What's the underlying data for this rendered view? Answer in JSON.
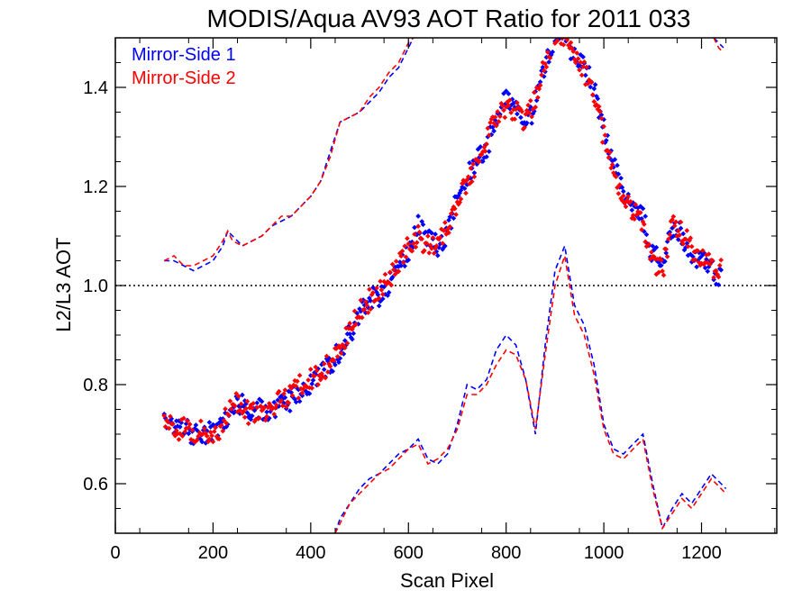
{
  "chart_data": {
    "type": "scatter",
    "title": "MODIS/Aqua AV93 AOT Ratio for 2011 033",
    "xlabel": "Scan Pixel",
    "ylabel": "L2/L3 AOT",
    "xlim": [
      0,
      1354
    ],
    "ylim": [
      0.5,
      1.5
    ],
    "x_ticks": [
      0,
      200,
      400,
      600,
      800,
      1000,
      1200
    ],
    "x_tick_labels": [
      "0",
      "200",
      "400",
      "600",
      "800",
      "1000",
      "1200"
    ],
    "y_ticks": [
      0.6,
      0.8,
      1.0,
      1.2,
      1.4
    ],
    "y_tick_labels": [
      "0.6",
      "0.8",
      "1.0",
      "1.2",
      "1.4"
    ],
    "reference_line": 1.0,
    "legend_position": "top-left",
    "series": [
      {
        "name": "Mirror-Side 1",
        "color": "#0000ff",
        "mean": {
          "x": [
            100,
            120,
            140,
            160,
            180,
            200,
            220,
            240,
            260,
            280,
            300,
            320,
            340,
            360,
            380,
            400,
            420,
            440,
            460,
            480,
            500,
            520,
            540,
            560,
            580,
            600,
            620,
            640,
            660,
            680,
            700,
            720,
            740,
            760,
            780,
            800,
            820,
            840,
            860,
            880,
            900,
            920,
            940,
            960,
            980,
            1000,
            1020,
            1040,
            1060,
            1080,
            1100,
            1120,
            1140,
            1160,
            1180,
            1200,
            1220,
            1240
          ],
          "y": [
            0.73,
            0.72,
            0.71,
            0.7,
            0.7,
            0.71,
            0.71,
            0.76,
            0.76,
            0.75,
            0.75,
            0.74,
            0.76,
            0.77,
            0.79,
            0.8,
            0.82,
            0.84,
            0.87,
            0.9,
            0.94,
            0.97,
            0.98,
            1.0,
            1.03,
            1.07,
            1.12,
            1.09,
            1.08,
            1.1,
            1.18,
            1.22,
            1.25,
            1.28,
            1.33,
            1.38,
            1.36,
            1.31,
            1.37,
            1.44,
            1.5,
            1.51,
            1.46,
            1.44,
            1.4,
            1.32,
            1.24,
            1.19,
            1.16,
            1.14,
            1.06,
            1.05,
            1.12,
            1.1,
            1.06,
            1.05,
            1.03,
            1.02
          ]
        },
        "upper": {
          "x": [
            100,
            120,
            140,
            160,
            180,
            200,
            220,
            230,
            240,
            260,
            280,
            300,
            320,
            340,
            360,
            380,
            400,
            420,
            440,
            460,
            480,
            500,
            520,
            540,
            560,
            580,
            600,
            610
          ],
          "y": [
            1.05,
            1.05,
            1.04,
            1.03,
            1.04,
            1.05,
            1.08,
            1.11,
            1.1,
            1.08,
            1.09,
            1.1,
            1.12,
            1.13,
            1.14,
            1.16,
            1.18,
            1.21,
            1.27,
            1.33,
            1.34,
            1.35,
            1.37,
            1.39,
            1.42,
            1.44,
            1.48,
            1.5
          ]
        },
        "upper_right": {
          "x": [
            1225,
            1235,
            1245
          ],
          "y": [
            1.5,
            1.49,
            1.48
          ]
        },
        "lower": {
          "x": [
            450,
            460,
            480,
            500,
            520,
            540,
            560,
            580,
            600,
            620,
            640,
            660,
            680,
            700,
            720,
            740,
            760,
            780,
            800,
            820,
            840,
            860,
            880,
            900,
            920,
            940,
            960,
            980,
            1000,
            1020,
            1040,
            1060,
            1080,
            1100,
            1120,
            1140,
            1160,
            1180,
            1200,
            1220,
            1240,
            1250
          ],
          "y": [
            0.5,
            0.53,
            0.56,
            0.59,
            0.61,
            0.62,
            0.64,
            0.66,
            0.67,
            0.69,
            0.65,
            0.64,
            0.66,
            0.72,
            0.8,
            0.79,
            0.81,
            0.87,
            0.9,
            0.88,
            0.81,
            0.7,
            0.88,
            1.03,
            1.08,
            0.96,
            0.92,
            0.84,
            0.72,
            0.67,
            0.66,
            0.68,
            0.7,
            0.6,
            0.51,
            0.55,
            0.58,
            0.56,
            0.59,
            0.62,
            0.6,
            0.59
          ]
        }
      },
      {
        "name": "Mirror-Side 2",
        "color": "#ff0000",
        "mean": {
          "x": [
            100,
            120,
            140,
            160,
            180,
            200,
            220,
            240,
            260,
            280,
            300,
            320,
            340,
            360,
            380,
            400,
            420,
            440,
            460,
            480,
            500,
            520,
            540,
            560,
            580,
            600,
            620,
            640,
            660,
            680,
            700,
            720,
            740,
            760,
            780,
            800,
            820,
            840,
            860,
            880,
            900,
            920,
            940,
            960,
            980,
            1000,
            1020,
            1040,
            1060,
            1080,
            1100,
            1120,
            1140,
            1160,
            1180,
            1200,
            1220,
            1240
          ],
          "y": [
            0.72,
            0.71,
            0.71,
            0.7,
            0.71,
            0.7,
            0.72,
            0.77,
            0.75,
            0.74,
            0.74,
            0.75,
            0.77,
            0.78,
            0.8,
            0.81,
            0.82,
            0.85,
            0.88,
            0.91,
            0.95,
            0.97,
            0.99,
            1.01,
            1.04,
            1.08,
            1.1,
            1.08,
            1.09,
            1.11,
            1.17,
            1.21,
            1.24,
            1.29,
            1.34,
            1.36,
            1.35,
            1.33,
            1.38,
            1.45,
            1.51,
            1.5,
            1.47,
            1.43,
            1.39,
            1.3,
            1.22,
            1.17,
            1.15,
            1.12,
            1.04,
            1.03,
            1.12,
            1.11,
            1.07,
            1.06,
            1.04,
            1.03
          ]
        },
        "upper": {
          "x": [
            100,
            120,
            140,
            160,
            180,
            200,
            220,
            230,
            240,
            260,
            280,
            300,
            320,
            340,
            360,
            380,
            400,
            420,
            440,
            460,
            480,
            500,
            520,
            540,
            560,
            580,
            600,
            610
          ],
          "y": [
            1.05,
            1.06,
            1.04,
            1.04,
            1.05,
            1.06,
            1.09,
            1.11,
            1.09,
            1.08,
            1.09,
            1.1,
            1.12,
            1.14,
            1.14,
            1.16,
            1.18,
            1.21,
            1.26,
            1.33,
            1.34,
            1.35,
            1.38,
            1.4,
            1.43,
            1.45,
            1.49,
            1.5
          ]
        },
        "upper_right": {
          "x": [
            1225,
            1235,
            1245
          ],
          "y": [
            1.5,
            1.48,
            1.47
          ]
        },
        "lower": {
          "x": [
            450,
            460,
            480,
            500,
            520,
            540,
            560,
            580,
            600,
            620,
            640,
            660,
            680,
            700,
            720,
            740,
            760,
            780,
            800,
            820,
            840,
            860,
            880,
            900,
            920,
            940,
            960,
            980,
            1000,
            1020,
            1040,
            1060,
            1080,
            1100,
            1120,
            1140,
            1160,
            1180,
            1200,
            1220,
            1240,
            1250
          ],
          "y": [
            0.5,
            0.52,
            0.56,
            0.58,
            0.6,
            0.62,
            0.63,
            0.65,
            0.67,
            0.68,
            0.64,
            0.65,
            0.67,
            0.71,
            0.78,
            0.78,
            0.8,
            0.84,
            0.87,
            0.86,
            0.81,
            0.71,
            0.86,
            1.0,
            1.06,
            0.94,
            0.9,
            0.82,
            0.71,
            0.66,
            0.65,
            0.67,
            0.69,
            0.59,
            0.51,
            0.54,
            0.57,
            0.55,
            0.58,
            0.61,
            0.59,
            0.58
          ]
        }
      }
    ]
  }
}
